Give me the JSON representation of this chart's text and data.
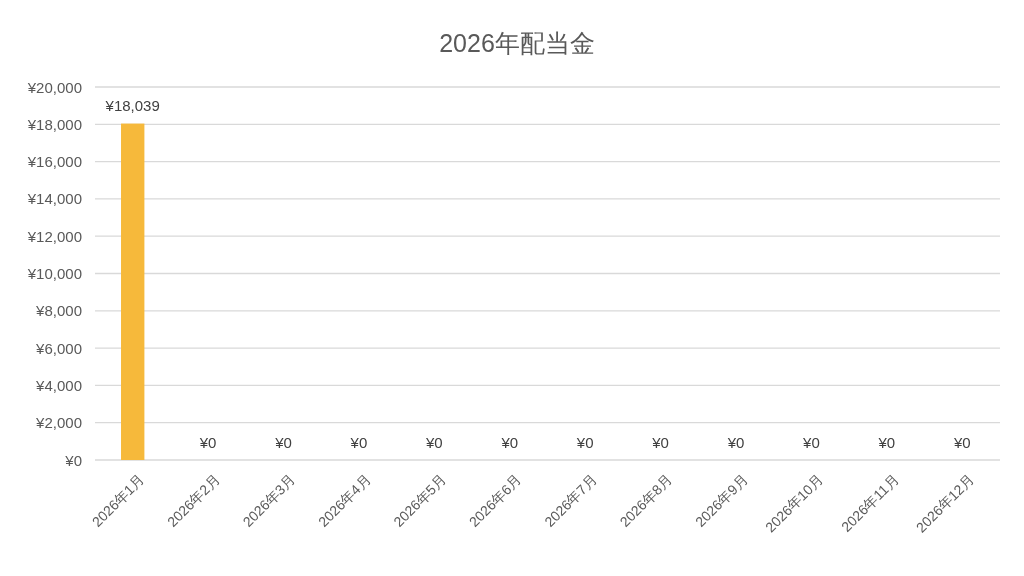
{
  "chart_data": {
    "type": "bar",
    "title": "2026年配当金",
    "categories": [
      "2026年1月",
      "2026年2月",
      "2026年3月",
      "2026年4月",
      "2026年5月",
      "2026年6月",
      "2026年7月",
      "2026年8月",
      "2026年9月",
      "2026年10月",
      "2026年11月",
      "2026年12月"
    ],
    "values": [
      18039,
      0,
      0,
      0,
      0,
      0,
      0,
      0,
      0,
      0,
      0,
      0
    ],
    "color": "#f6b93b",
    "value_labels": [
      "¥18,039",
      "¥0",
      "¥0",
      "¥0",
      "¥0",
      "¥0",
      "¥0",
      "¥0",
      "¥0",
      "¥0",
      "¥0",
      "¥0"
    ],
    "ylim": [
      0,
      20000
    ],
    "yticks": [
      {
        "value": 0,
        "label": "¥0"
      },
      {
        "value": 2000,
        "label": "¥2,000"
      },
      {
        "value": 4000,
        "label": "¥4,000"
      },
      {
        "value": 6000,
        "label": "¥6,000"
      },
      {
        "value": 8000,
        "label": "¥8,000"
      },
      {
        "value": 10000,
        "label": "¥10,000"
      },
      {
        "value": 12000,
        "label": "¥12,000"
      },
      {
        "value": 14000,
        "label": "¥14,000"
      },
      {
        "value": 16000,
        "label": "¥16,000"
      },
      {
        "value": 18000,
        "label": "¥18,000"
      },
      {
        "value": 20000,
        "label": "¥20,000"
      }
    ],
    "grid": "y"
  }
}
